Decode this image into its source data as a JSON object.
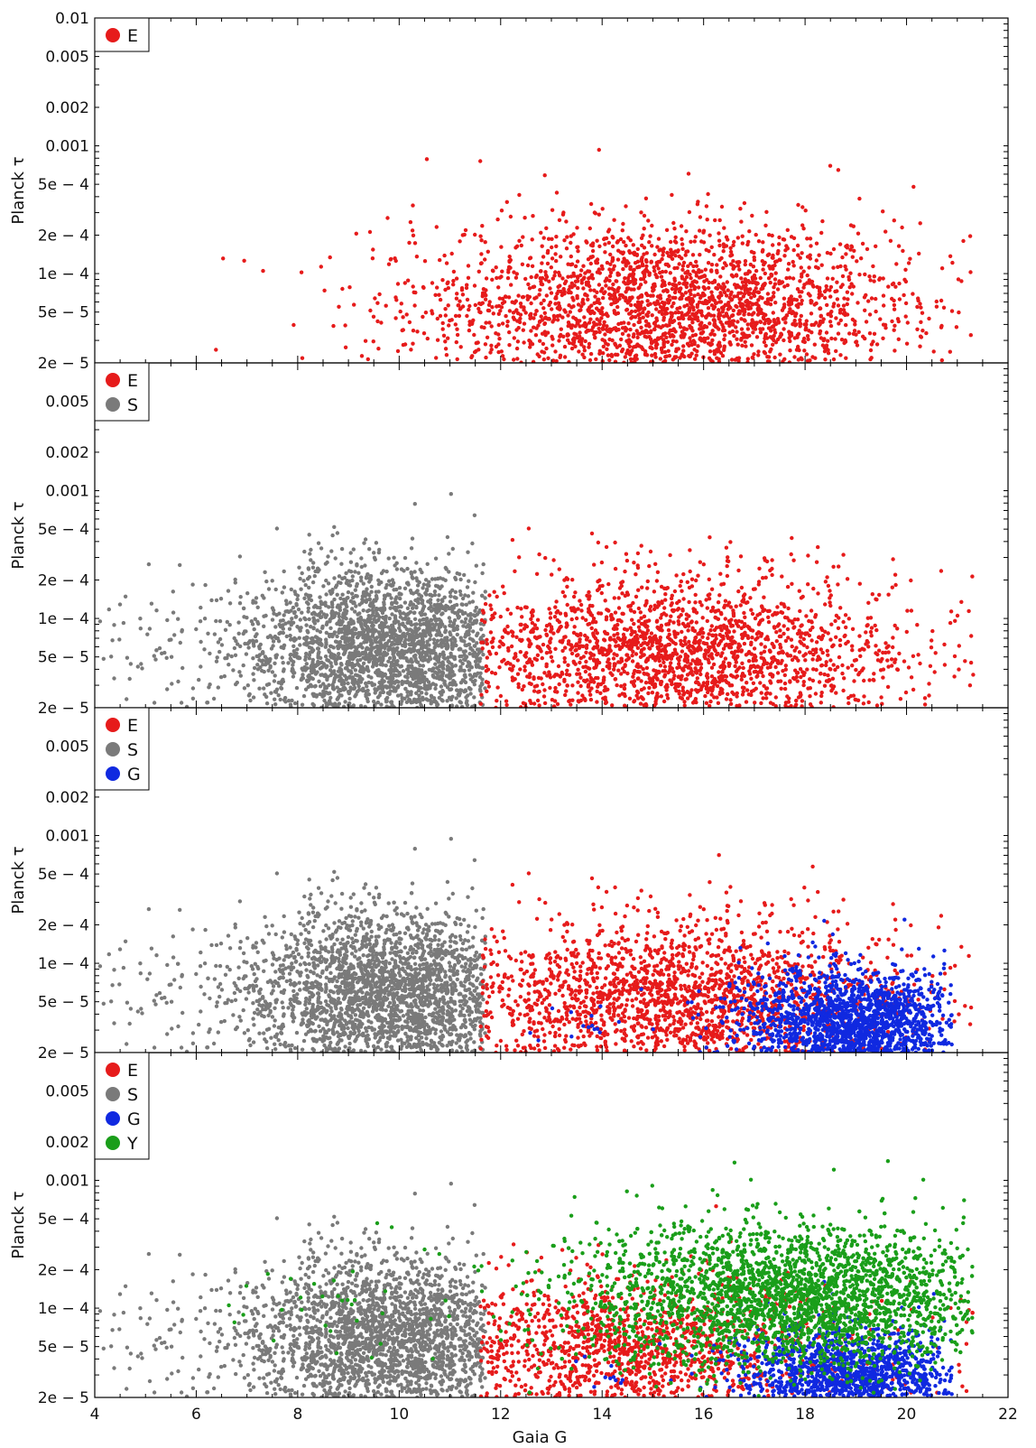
{
  "figure": {
    "xlabel": "Gaia G",
    "ylabel": "Planck τ"
  },
  "colors": {
    "E": "#e61b1b",
    "S": "#7a7a7a",
    "G": "#1029e0",
    "Y": "#1a9e1a"
  },
  "chart_data": [
    {
      "type": "scatter",
      "xlabel": "",
      "ylabel": "Planck τ",
      "xlim": [
        4,
        22
      ],
      "ylim": [
        2e-05,
        0.01
      ],
      "yscale": "log",
      "xticks": [],
      "yticks": [
        {
          "value": 0.01,
          "label": "0.01"
        },
        {
          "value": 0.005,
          "label": "0.005"
        },
        {
          "value": 0.002,
          "label": "0.002"
        },
        {
          "value": 0.001,
          "label": "0.001"
        },
        {
          "value": 0.0005,
          "label": "5e − 4"
        },
        {
          "value": 0.0002,
          "label": "2e − 4"
        },
        {
          "value": 0.0001,
          "label": "1e − 4"
        },
        {
          "value": 5e-05,
          "label": "5e − 5"
        },
        {
          "value": 2e-05,
          "label": "2e − 5"
        }
      ],
      "legend": {
        "position": "top-left",
        "entries": [
          "E"
        ]
      },
      "series": [
        {
          "name": "E",
          "color": "#e61b1b",
          "count": 2600,
          "xdist": {
            "mean": 15.3,
            "sd": 2.4,
            "min": 5.0,
            "max": 21.4
          },
          "logydist": {
            "mean": -4.28,
            "sd": 0.33
          }
        }
      ]
    },
    {
      "type": "scatter",
      "xlabel": "",
      "ylabel": "Planck τ",
      "xlim": [
        4,
        22
      ],
      "ylim": [
        2e-05,
        0.01
      ],
      "yscale": "log",
      "xticks": [],
      "yticks": [
        {
          "value": 0.005,
          "label": "0.005"
        },
        {
          "value": 0.002,
          "label": "0.002"
        },
        {
          "value": 0.001,
          "label": "0.001"
        },
        {
          "value": 0.0005,
          "label": "5e − 4"
        },
        {
          "value": 0.0002,
          "label": "2e − 4"
        },
        {
          "value": 0.0001,
          "label": "1e − 4"
        },
        {
          "value": 5e-05,
          "label": "5e − 5"
        },
        {
          "value": 2e-05,
          "label": "2e − 5"
        }
      ],
      "legend": {
        "position": "top-left",
        "entries": [
          "E",
          "S"
        ]
      },
      "series": [
        {
          "name": "S",
          "color": "#7a7a7a",
          "count": 2600,
          "xdist": {
            "mean": 9.8,
            "sd": 1.4,
            "min": 4.1,
            "max": 11.7
          },
          "logydist": {
            "mean": -4.25,
            "sd": 0.32
          }
        },
        {
          "name": "E",
          "color": "#e61b1b",
          "count": 2100,
          "xdist": {
            "mean": 15.5,
            "sd": 2.2,
            "min": 11.6,
            "max": 21.4
          },
          "logydist": {
            "mean": -4.3,
            "sd": 0.32
          }
        }
      ]
    },
    {
      "type": "scatter",
      "xlabel": "",
      "ylabel": "Planck τ",
      "xlim": [
        4,
        22
      ],
      "ylim": [
        2e-05,
        0.01
      ],
      "yscale": "log",
      "xticks": [],
      "yticks": [
        {
          "value": 0.005,
          "label": "0.005"
        },
        {
          "value": 0.002,
          "label": "0.002"
        },
        {
          "value": 0.001,
          "label": "0.001"
        },
        {
          "value": 0.0005,
          "label": "5e − 4"
        },
        {
          "value": 0.0002,
          "label": "2e − 4"
        },
        {
          "value": 0.0001,
          "label": "1e − 4"
        },
        {
          "value": 5e-05,
          "label": "5e − 5"
        },
        {
          "value": 2e-05,
          "label": "2e − 5"
        }
      ],
      "legend": {
        "position": "top-left",
        "entries": [
          "E",
          "S",
          "G"
        ]
      },
      "series": [
        {
          "name": "S",
          "color": "#7a7a7a",
          "count": 2600,
          "xdist": {
            "mean": 9.8,
            "sd": 1.4,
            "min": 4.1,
            "max": 11.7
          },
          "logydist": {
            "mean": -4.25,
            "sd": 0.32
          }
        },
        {
          "name": "E",
          "color": "#e61b1b",
          "count": 2100,
          "xdist": {
            "mean": 15.5,
            "sd": 2.2,
            "min": 11.6,
            "max": 21.4
          },
          "logydist": {
            "mean": -4.3,
            "sd": 0.32
          }
        },
        {
          "name": "G",
          "color": "#1029e0",
          "count": 1900,
          "xdist": {
            "mean": 19.0,
            "sd": 1.1,
            "min": 12.5,
            "max": 20.9
          },
          "logydist": {
            "mean": -4.5,
            "sd": 0.22
          }
        }
      ]
    },
    {
      "type": "scatter",
      "xlabel": "Gaia G",
      "ylabel": "Planck τ",
      "xlim": [
        4,
        22
      ],
      "ylim": [
        2e-05,
        0.01
      ],
      "yscale": "log",
      "xticks": [
        {
          "value": 4,
          "label": "4"
        },
        {
          "value": 6,
          "label": "6"
        },
        {
          "value": 8,
          "label": "8"
        },
        {
          "value": 10,
          "label": "10"
        },
        {
          "value": 12,
          "label": "12"
        },
        {
          "value": 14,
          "label": "14"
        },
        {
          "value": 16,
          "label": "16"
        },
        {
          "value": 18,
          "label": "18"
        },
        {
          "value": 20,
          "label": "20"
        },
        {
          "value": 22,
          "label": "22"
        }
      ],
      "yticks": [
        {
          "value": 0.005,
          "label": "0.005"
        },
        {
          "value": 0.002,
          "label": "0.002"
        },
        {
          "value": 0.001,
          "label": "0.001"
        },
        {
          "value": 0.0005,
          "label": "5e − 4"
        },
        {
          "value": 0.0002,
          "label": "2e − 4"
        },
        {
          "value": 0.0001,
          "label": "1e − 4"
        },
        {
          "value": 5e-05,
          "label": "5e − 5"
        },
        {
          "value": 2e-05,
          "label": "2e − 5"
        }
      ],
      "legend": {
        "position": "top-left",
        "entries": [
          "E",
          "S",
          "G",
          "Y"
        ]
      },
      "series": [
        {
          "name": "S",
          "color": "#7a7a7a",
          "count": 2400,
          "xdist": {
            "mean": 9.8,
            "sd": 1.4,
            "min": 4.1,
            "max": 11.7
          },
          "logydist": {
            "mean": -4.25,
            "sd": 0.32
          }
        },
        {
          "name": "E",
          "color": "#e61b1b",
          "count": 1500,
          "xdist": {
            "mean": 14.5,
            "sd": 2.0,
            "min": 11.6,
            "max": 21.4
          },
          "logydist": {
            "mean": -4.35,
            "sd": 0.3
          }
        },
        {
          "name": "G",
          "color": "#1029e0",
          "count": 1500,
          "xdist": {
            "mean": 19.0,
            "sd": 1.1,
            "min": 13.0,
            "max": 20.9
          },
          "logydist": {
            "mean": -4.55,
            "sd": 0.2
          }
        },
        {
          "name": "Y",
          "color": "#1a9e1a",
          "count": 2800,
          "xdist": {
            "mean": 17.8,
            "sd": 2.1,
            "min": 6.5,
            "max": 21.3
          },
          "logydist": {
            "mean": -3.92,
            "sd": 0.28
          }
        }
      ]
    }
  ]
}
